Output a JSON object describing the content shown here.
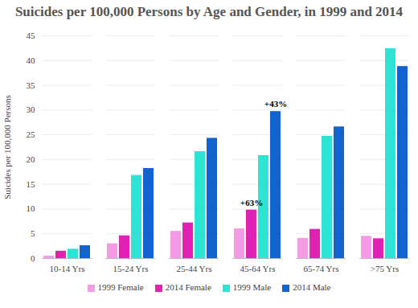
{
  "chart_data": {
    "type": "bar",
    "title": "Suicides per 100,000 Persons by Age and Gender, in 1999 and 2014",
    "y_label": "Suicides per 100,000 Persons",
    "categories": [
      "10-14 Yrs",
      "15-24 Yrs",
      "25-44 Yrs",
      "45-64 Yrs",
      "65-74 Yrs",
      ">75 Yrs"
    ],
    "series": [
      {
        "name": "1999 Female",
        "color": "#f59be6",
        "values": [
          0.5,
          3.0,
          5.5,
          6.0,
          4.1,
          4.5
        ]
      },
      {
        "name": "2014 Female",
        "color": "#e021b3",
        "values": [
          1.5,
          4.6,
          7.2,
          9.8,
          5.9,
          4.0
        ]
      },
      {
        "name": "1999 Male",
        "color": "#2ee3d3",
        "values": [
          1.9,
          16.8,
          21.6,
          20.8,
          24.7,
          42.4
        ]
      },
      {
        "name": "2014 Male",
        "color": "#1262cf",
        "values": [
          2.6,
          18.2,
          24.3,
          29.7,
          26.6,
          38.8
        ]
      }
    ],
    "ylim": [
      0,
      45
    ],
    "yticks": [
      0,
      5,
      10,
      15,
      20,
      25,
      30,
      35,
      40,
      45
    ],
    "grid": true,
    "legend": "bottom",
    "annotations": [
      {
        "text": "+63%",
        "category": "45-64 Yrs",
        "series": "2014 Female"
      },
      {
        "text": "+43%",
        "category": "45-64 Yrs",
        "series": "2014 Male"
      }
    ]
  }
}
